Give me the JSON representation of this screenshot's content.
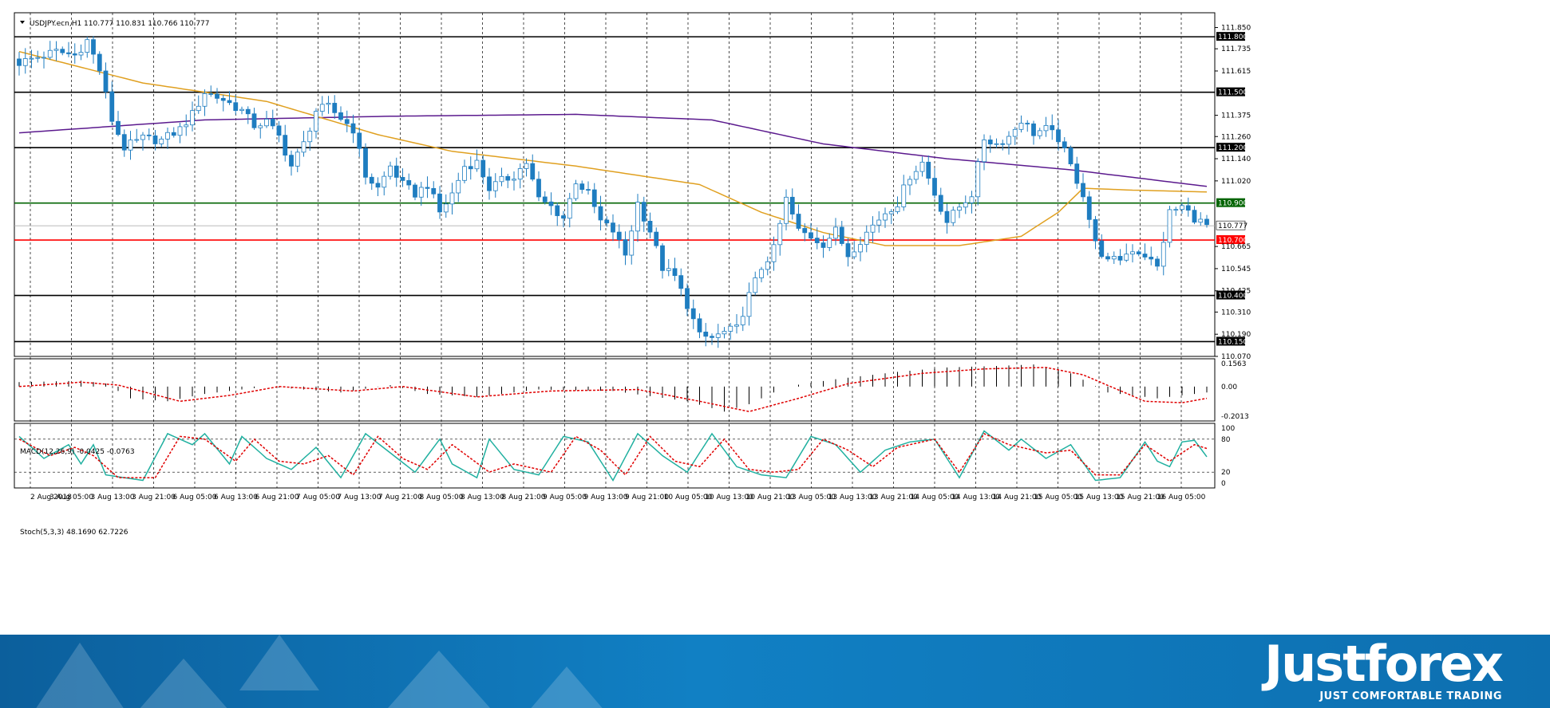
{
  "chart_data": [
    {
      "type": "candlestick",
      "title": "USDJPY.ecn,H1  110.777 110.831 110.766 110.777",
      "ylim": [
        110.07,
        111.93
      ],
      "y_ticks": [
        111.85,
        111.735,
        111.615,
        111.375,
        111.26,
        111.14,
        111.02,
        110.665,
        110.545,
        110.425,
        110.31,
        110.19,
        110.07
      ],
      "level_lines": [
        {
          "value": 111.8,
          "label": "111.800",
          "color": "#000000"
        },
        {
          "value": 111.5,
          "label": "111.500",
          "color": "#000000"
        },
        {
          "value": 111.2,
          "label": "111.200",
          "color": "#000000"
        },
        {
          "value": 110.9,
          "label": "110.900",
          "color": "#006400"
        },
        {
          "value": 110.7,
          "label": "110.700",
          "color": "#ff0000"
        },
        {
          "value": 110.4,
          "label": "110.400",
          "color": "#000000"
        },
        {
          "value": 110.15,
          "label": "110.150",
          "color": "#000000"
        }
      ],
      "current_price": {
        "value": 110.777,
        "label": "110.777"
      },
      "x_labels": [
        "2 Aug 2018",
        "3 Aug 05:00",
        "3 Aug 13:00",
        "3 Aug 21:00",
        "6 Aug 05:00",
        "6 Aug 13:00",
        "6 Aug 21:00",
        "7 Aug 05:00",
        "7 Aug 13:00",
        "7 Aug 21:00",
        "8 Aug 05:00",
        "8 Aug 13:00",
        "8 Aug 21:00",
        "9 Aug 05:00",
        "9 Aug 13:00",
        "9 Aug 21:00",
        "10 Aug 05:00",
        "10 Aug 13:00",
        "10 Aug 21:00",
        "13 Aug 05:00",
        "13 Aug 13:00",
        "13 Aug 21:00",
        "14 Aug 05:00",
        "14 Aug 13:00",
        "14 Aug 21:00",
        "15 Aug 05:00",
        "15 Aug 13:00",
        "15 Aug 21:00",
        "16 Aug 05:00"
      ],
      "close_path": [
        [
          0,
          111.66
        ],
        [
          3,
          111.69
        ],
        [
          6,
          111.72
        ],
        [
          9,
          111.7
        ],
        [
          11,
          111.78
        ],
        [
          13,
          111.62
        ],
        [
          15,
          111.35
        ],
        [
          17,
          111.2
        ],
        [
          20,
          111.25
        ],
        [
          23,
          111.24
        ],
        [
          26,
          111.3
        ],
        [
          28,
          111.38
        ],
        [
          30,
          111.5
        ],
        [
          33,
          111.46
        ],
        [
          36,
          111.4
        ],
        [
          38,
          111.32
        ],
        [
          40,
          111.34
        ],
        [
          42,
          111.26
        ],
        [
          44,
          111.1
        ],
        [
          46,
          111.22
        ],
        [
          48,
          111.4
        ],
        [
          50,
          111.42
        ],
        [
          52,
          111.36
        ],
        [
          54,
          111.3
        ],
        [
          56,
          111.05
        ],
        [
          58,
          110.98
        ],
        [
          60,
          111.1
        ],
        [
          62,
          111.0
        ],
        [
          64,
          110.95
        ],
        [
          66,
          111.0
        ],
        [
          68,
          110.85
        ],
        [
          70,
          110.95
        ],
        [
          72,
          111.1
        ],
        [
          74,
          111.12
        ],
        [
          76,
          110.98
        ],
        [
          78,
          111.02
        ],
        [
          80,
          111.05
        ],
        [
          82,
          111.12
        ],
        [
          84,
          110.92
        ],
        [
          86,
          110.88
        ],
        [
          88,
          110.82
        ],
        [
          90,
          111.02
        ],
        [
          92,
          110.95
        ],
        [
          94,
          110.8
        ],
        [
          96,
          110.75
        ],
        [
          98,
          110.62
        ],
        [
          100,
          110.9
        ],
        [
          102,
          110.75
        ],
        [
          104,
          110.55
        ],
        [
          106,
          110.5
        ],
        [
          108,
          110.35
        ],
        [
          110,
          110.18
        ],
        [
          112,
          110.17
        ],
        [
          114,
          110.2
        ],
        [
          116,
          110.22
        ],
        [
          118,
          110.4
        ],
        [
          120,
          110.55
        ],
        [
          122,
          110.65
        ],
        [
          124,
          110.92
        ],
        [
          126,
          110.75
        ],
        [
          128,
          110.72
        ],
        [
          130,
          110.68
        ],
        [
          132,
          110.75
        ],
        [
          134,
          110.62
        ],
        [
          136,
          110.7
        ],
        [
          138,
          110.78
        ],
        [
          140,
          110.85
        ],
        [
          142,
          110.9
        ],
        [
          144,
          111.05
        ],
        [
          146,
          111.12
        ],
        [
          148,
          110.95
        ],
        [
          150,
          110.8
        ],
        [
          152,
          110.88
        ],
        [
          154,
          110.95
        ],
        [
          156,
          111.25
        ],
        [
          158,
          111.22
        ],
        [
          160,
          111.26
        ],
        [
          162,
          111.35
        ],
        [
          164,
          111.28
        ],
        [
          166,
          111.3
        ],
        [
          168,
          111.25
        ],
        [
          170,
          111.1
        ],
        [
          172,
          110.95
        ],
        [
          174,
          110.68
        ],
        [
          176,
          110.58
        ],
        [
          178,
          110.6
        ],
        [
          180,
          110.65
        ],
        [
          182,
          110.62
        ],
        [
          184,
          110.55
        ],
        [
          186,
          110.85
        ],
        [
          188,
          110.88
        ],
        [
          190,
          110.82
        ],
        [
          192,
          110.777
        ]
      ],
      "ma_slow": [
        [
          0,
          111.28
        ],
        [
          30,
          111.35
        ],
        [
          60,
          111.37
        ],
        [
          90,
          111.38
        ],
        [
          112,
          111.35
        ],
        [
          130,
          111.22
        ],
        [
          150,
          111.14
        ],
        [
          170,
          111.08
        ],
        [
          192,
          110.99
        ]
      ],
      "ma_fast": [
        [
          0,
          111.72
        ],
        [
          20,
          111.55
        ],
        [
          40,
          111.45
        ],
        [
          58,
          111.27
        ],
        [
          70,
          111.18
        ],
        [
          90,
          111.1
        ],
        [
          110,
          111.0
        ],
        [
          120,
          110.85
        ],
        [
          130,
          110.74
        ],
        [
          140,
          110.67
        ],
        [
          152,
          110.67
        ],
        [
          162,
          110.72
        ],
        [
          168,
          110.85
        ],
        [
          172,
          110.98
        ],
        [
          180,
          110.97
        ],
        [
          192,
          110.96
        ]
      ],
      "colors": {
        "bull": "#ffffff",
        "bear": "#1e7dc0",
        "wick": "#1e7dc0",
        "ma_slow": "#5b1a8e",
        "ma_fast": "#e0a020",
        "grid": "#000000"
      }
    },
    {
      "type": "histogram",
      "title": "MACD(12,26,9) -0.0425 -0.0763",
      "ylim": [
        -0.2013,
        0.1563
      ],
      "y_ticks": [
        {
          "value": 0.1563,
          "label": "0.1563"
        },
        {
          "value": 0.0,
          "label": "0.00"
        },
        {
          "value": -0.2013,
          "label": "-0.2013"
        }
      ],
      "histogram_path": [
        [
          0,
          0.03
        ],
        [
          10,
          0.04
        ],
        [
          14,
          0.02
        ],
        [
          18,
          -0.08
        ],
        [
          24,
          -0.1
        ],
        [
          30,
          -0.05
        ],
        [
          40,
          0.0
        ],
        [
          52,
          -0.04
        ],
        [
          60,
          0.01
        ],
        [
          66,
          -0.05
        ],
        [
          74,
          -0.07
        ],
        [
          84,
          -0.02
        ],
        [
          96,
          -0.03
        ],
        [
          108,
          -0.1
        ],
        [
          114,
          -0.17
        ],
        [
          118,
          -0.12
        ],
        [
          124,
          0.0
        ],
        [
          132,
          0.05
        ],
        [
          142,
          0.1
        ],
        [
          150,
          0.13
        ],
        [
          158,
          0.14
        ],
        [
          164,
          0.15
        ],
        [
          170,
          0.09
        ],
        [
          176,
          -0.04
        ],
        [
          184,
          -0.08
        ],
        [
          192,
          -0.04
        ]
      ],
      "signal_path": [
        [
          0,
          0.0
        ],
        [
          10,
          0.03
        ],
        [
          16,
          0.01
        ],
        [
          26,
          -0.1
        ],
        [
          34,
          -0.06
        ],
        [
          42,
          0.0
        ],
        [
          54,
          -0.03
        ],
        [
          62,
          0.0
        ],
        [
          74,
          -0.07
        ],
        [
          86,
          -0.03
        ],
        [
          100,
          -0.02
        ],
        [
          110,
          -0.1
        ],
        [
          118,
          -0.17
        ],
        [
          126,
          -0.08
        ],
        [
          134,
          0.02
        ],
        [
          146,
          0.09
        ],
        [
          156,
          0.12
        ],
        [
          166,
          0.13
        ],
        [
          172,
          0.08
        ],
        [
          182,
          -0.1
        ],
        [
          188,
          -0.11
        ],
        [
          192,
          -0.08
        ]
      ],
      "colors": {
        "histogram": "#000000",
        "signal": "#e00000"
      }
    },
    {
      "type": "line",
      "title": "Stoch(5,3,3) 48.1690 62.7226",
      "ylim": [
        0,
        100
      ],
      "y_ticks": [
        {
          "value": 100,
          "label": "100"
        },
        {
          "value": 80,
          "label": "80"
        },
        {
          "value": 20,
          "label": "20"
        },
        {
          "value": 0,
          "label": "0"
        }
      ],
      "levels": [
        80,
        20
      ],
      "main_path": [
        [
          0,
          85
        ],
        [
          4,
          45
        ],
        [
          8,
          70
        ],
        [
          10,
          35
        ],
        [
          12,
          70
        ],
        [
          14,
          15
        ],
        [
          20,
          5
        ],
        [
          24,
          90
        ],
        [
          28,
          70
        ],
        [
          30,
          90
        ],
        [
          34,
          35
        ],
        [
          36,
          85
        ],
        [
          40,
          45
        ],
        [
          44,
          25
        ],
        [
          48,
          65
        ],
        [
          52,
          10
        ],
        [
          56,
          90
        ],
        [
          60,
          55
        ],
        [
          64,
          20
        ],
        [
          68,
          80
        ],
        [
          70,
          35
        ],
        [
          74,
          10
        ],
        [
          76,
          80
        ],
        [
          80,
          25
        ],
        [
          84,
          15
        ],
        [
          88,
          85
        ],
        [
          92,
          75
        ],
        [
          96,
          5
        ],
        [
          100,
          90
        ],
        [
          104,
          50
        ],
        [
          108,
          20
        ],
        [
          112,
          90
        ],
        [
          116,
          30
        ],
        [
          120,
          15
        ],
        [
          124,
          10
        ],
        [
          128,
          85
        ],
        [
          132,
          70
        ],
        [
          136,
          20
        ],
        [
          140,
          60
        ],
        [
          144,
          75
        ],
        [
          148,
          80
        ],
        [
          152,
          10
        ],
        [
          156,
          95
        ],
        [
          160,
          60
        ],
        [
          162,
          80
        ],
        [
          166,
          45
        ],
        [
          170,
          70
        ],
        [
          174,
          5
        ],
        [
          178,
          10
        ],
        [
          182,
          75
        ],
        [
          184,
          40
        ],
        [
          186,
          30
        ],
        [
          188,
          75
        ],
        [
          190,
          78
        ],
        [
          192,
          48
        ]
      ],
      "signal_path": [
        [
          0,
          80
        ],
        [
          5,
          50
        ],
        [
          9,
          65
        ],
        [
          12,
          50
        ],
        [
          16,
          10
        ],
        [
          22,
          10
        ],
        [
          26,
          85
        ],
        [
          30,
          80
        ],
        [
          35,
          40
        ],
        [
          38,
          80
        ],
        [
          42,
          40
        ],
        [
          46,
          35
        ],
        [
          50,
          50
        ],
        [
          54,
          15
        ],
        [
          58,
          85
        ],
        [
          62,
          45
        ],
        [
          66,
          25
        ],
        [
          70,
          70
        ],
        [
          76,
          20
        ],
        [
          80,
          35
        ],
        [
          86,
          20
        ],
        [
          90,
          85
        ],
        [
          94,
          60
        ],
        [
          98,
          15
        ],
        [
          102,
          85
        ],
        [
          106,
          40
        ],
        [
          110,
          30
        ],
        [
          114,
          80
        ],
        [
          118,
          25
        ],
        [
          122,
          20
        ],
        [
          126,
          25
        ],
        [
          130,
          80
        ],
        [
          134,
          60
        ],
        [
          138,
          30
        ],
        [
          142,
          65
        ],
        [
          148,
          80
        ],
        [
          152,
          20
        ],
        [
          156,
          90
        ],
        [
          160,
          70
        ],
        [
          166,
          55
        ],
        [
          170,
          60
        ],
        [
          174,
          15
        ],
        [
          178,
          15
        ],
        [
          182,
          70
        ],
        [
          186,
          40
        ],
        [
          190,
          70
        ],
        [
          192,
          63
        ]
      ],
      "colors": {
        "main": "#20b0a0",
        "signal": "#e00000"
      }
    }
  ],
  "brand": {
    "name": "Justforex",
    "tagline": "JUST COMFORTABLE TRADING"
  }
}
